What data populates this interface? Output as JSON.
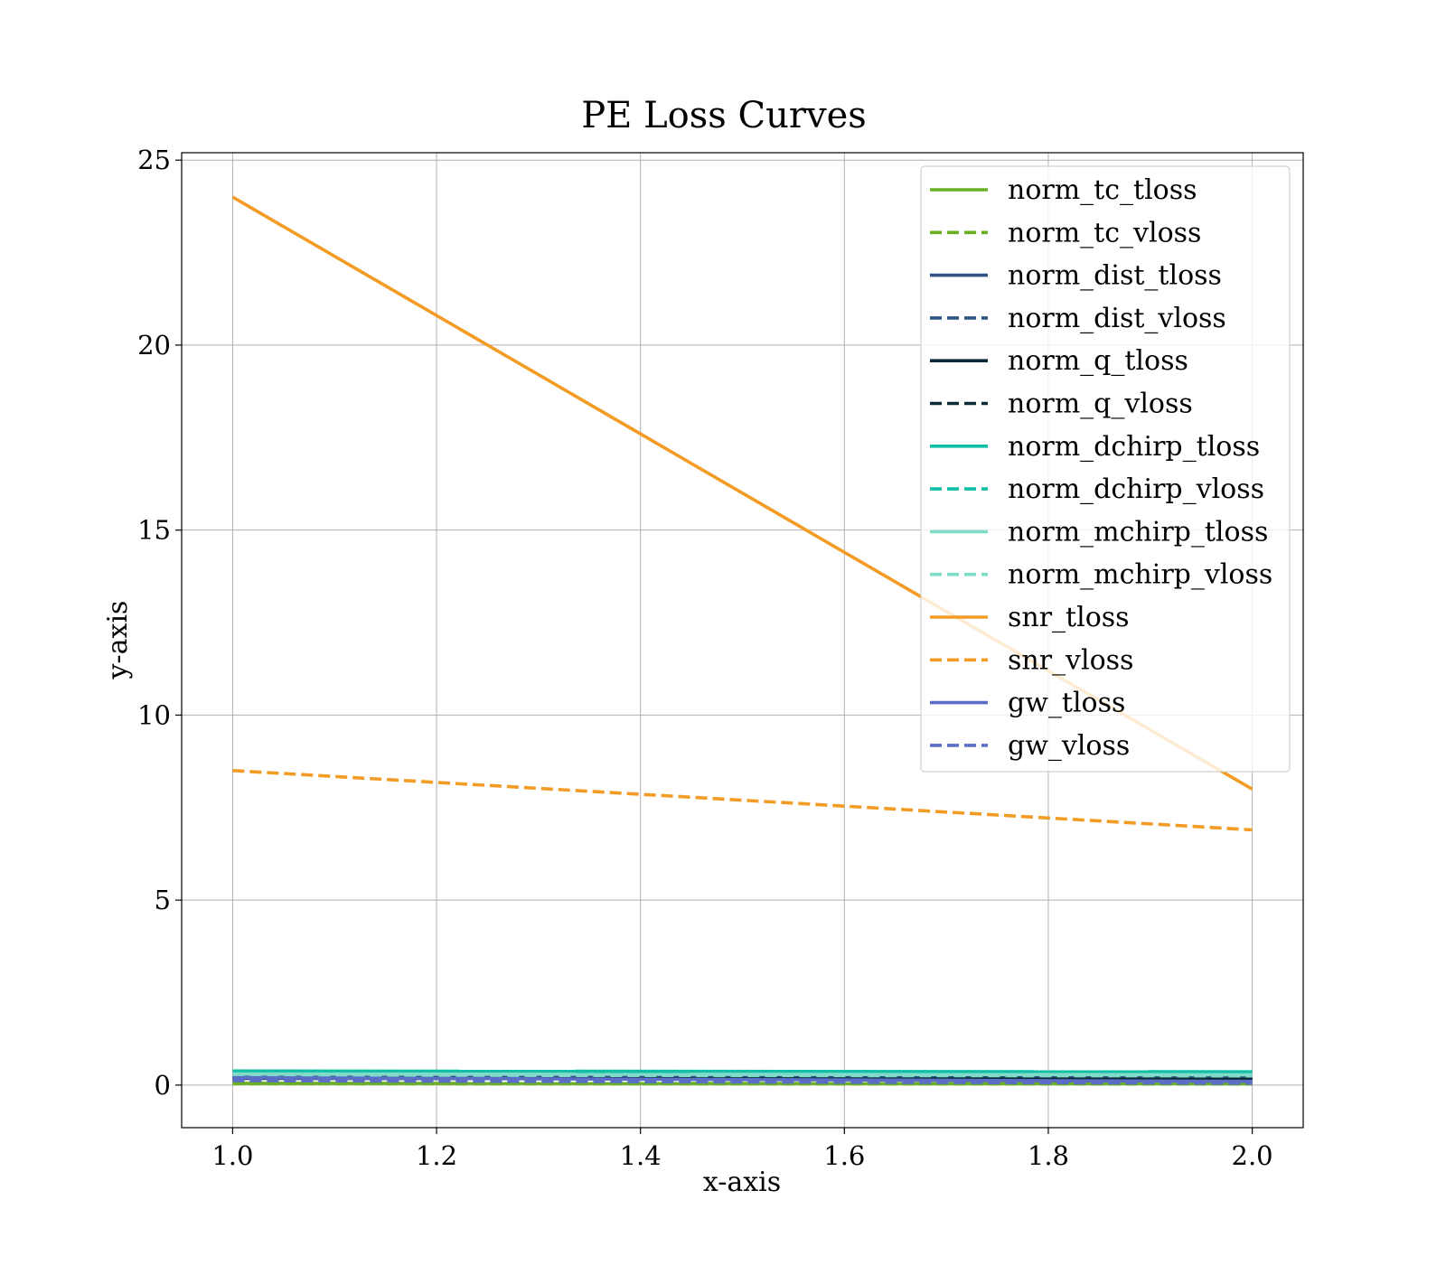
{
  "chart_data": {
    "type": "line",
    "title": "PE Loss Curves",
    "xlabel": "x-axis",
    "ylabel": "y-axis",
    "xlim": [
      0.95,
      2.05
    ],
    "ylim": [
      -1.15,
      25.2
    ],
    "grid": true,
    "legend_position": "top-right",
    "x_ticks": [
      1.0,
      1.2,
      1.4,
      1.6,
      1.8,
      2.0
    ],
    "x_tick_labels": [
      "1.0",
      "1.2",
      "1.4",
      "1.6",
      "1.8",
      "2.0"
    ],
    "y_ticks": [
      0,
      5,
      10,
      15,
      20,
      25
    ],
    "y_tick_labels": [
      "0",
      "5",
      "10",
      "15",
      "20",
      "25"
    ],
    "x": [
      1.0,
      2.0
    ],
    "series": [
      {
        "name": "norm_tc_tloss",
        "values": [
          0.05,
          0.04
        ],
        "color": "#6ab023",
        "style": "solid"
      },
      {
        "name": "norm_tc_vloss",
        "values": [
          0.04,
          0.03
        ],
        "color": "#6ab023",
        "style": "dashed"
      },
      {
        "name": "norm_dist_tloss",
        "values": [
          0.22,
          0.2
        ],
        "color": "#2e5582",
        "style": "solid"
      },
      {
        "name": "norm_dist_vloss",
        "values": [
          0.2,
          0.18
        ],
        "color": "#2e5582",
        "style": "dashed"
      },
      {
        "name": "norm_q_tloss",
        "values": [
          0.18,
          0.16
        ],
        "color": "#0b2a35",
        "style": "solid"
      },
      {
        "name": "norm_q_vloss",
        "values": [
          0.16,
          0.15
        ],
        "color": "#0b2a35",
        "style": "dashed"
      },
      {
        "name": "norm_dchirp_tloss",
        "values": [
          0.38,
          0.36
        ],
        "color": "#12bfa6",
        "style": "solid"
      },
      {
        "name": "norm_dchirp_vloss",
        "values": [
          0.33,
          0.31
        ],
        "color": "#12bfa6",
        "style": "dashed"
      },
      {
        "name": "norm_mchirp_tloss",
        "values": [
          0.3,
          0.28
        ],
        "color": "#80dcc8",
        "style": "solid"
      },
      {
        "name": "norm_mchirp_vloss",
        "values": [
          0.27,
          0.25
        ],
        "color": "#80dcc8",
        "style": "dashed"
      },
      {
        "name": "snr_tloss",
        "values": [
          24.0,
          8.0
        ],
        "color": "#f29b25",
        "style": "solid"
      },
      {
        "name": "snr_vloss",
        "values": [
          8.5,
          6.9
        ],
        "color": "#f29b25",
        "style": "dashed"
      },
      {
        "name": "gw_tloss",
        "values": [
          0.2,
          0.1
        ],
        "color": "#5b6dc4",
        "style": "solid"
      },
      {
        "name": "gw_vloss",
        "values": [
          0.12,
          0.05
        ],
        "color": "#5b6dc4",
        "style": "dashed"
      }
    ]
  }
}
